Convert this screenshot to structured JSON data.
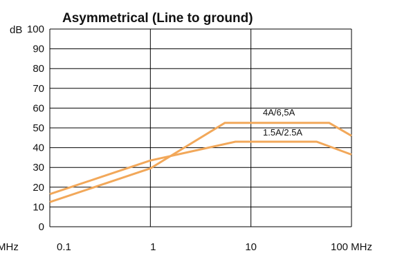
{
  "chart_data": {
    "type": "line",
    "title": "Asymmetrical (Line to ground)",
    "y_unit_label": "dB",
    "x_unit_label_left": "MHz",
    "x_unit_label_right": "100 MHz",
    "x_scale": "log",
    "xlim": [
      0.1,
      100
    ],
    "ylim": [
      0,
      100
    ],
    "x_ticks": [
      0.1,
      1,
      10,
      100
    ],
    "x_tick_labels": [
      "0.1",
      "1",
      "10",
      "100 MHz"
    ],
    "y_ticks": [
      0,
      10,
      20,
      30,
      40,
      50,
      60,
      70,
      80,
      90,
      100
    ],
    "y_tick_labels": [
      "0",
      "10",
      "20",
      "30",
      "40",
      "50",
      "60",
      "70",
      "80",
      "90",
      "100"
    ],
    "x_gridlines": [
      0.1,
      1,
      10,
      100
    ],
    "y_gridlines": [
      0,
      10,
      20,
      30,
      40,
      50,
      60,
      70,
      80,
      90,
      100
    ],
    "grid": true,
    "line_color": "#f2a85a",
    "series": [
      {
        "name": "4A/6,5A",
        "x": [
          0.1,
          1,
          5.5,
          60,
          100
        ],
        "y": [
          12.5,
          29.5,
          52.5,
          52.5,
          46
        ]
      },
      {
        "name": "1.5A/2.5A",
        "x": [
          0.1,
          1,
          7,
          45,
          100
        ],
        "y": [
          16.5,
          33.5,
          43,
          43,
          36.5
        ]
      }
    ]
  }
}
